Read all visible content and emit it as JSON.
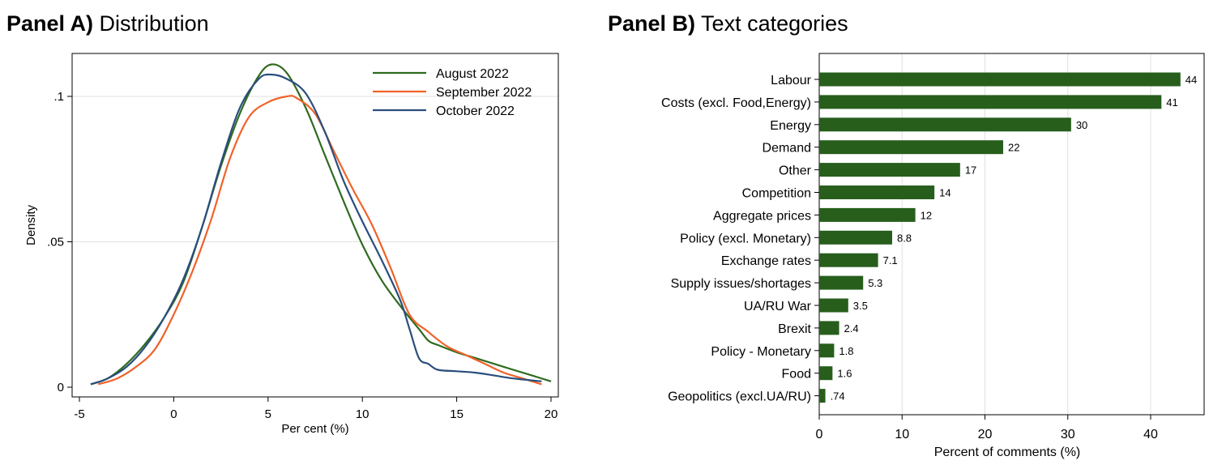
{
  "chart_data": [
    {
      "panel": "A",
      "type": "line",
      "title_prefix": "Panel A)",
      "title": "Distribution",
      "xlabel": "Per cent (%)",
      "ylabel": "Density",
      "xlim": [
        -5,
        20
      ],
      "ylim": [
        0,
        0.113
      ],
      "xticks": [
        -5,
        0,
        5,
        10,
        15,
        20
      ],
      "xtick_labels": [
        "-5",
        "0",
        "5",
        "10",
        "15",
        "20"
      ],
      "yticks": [
        0,
        0.05,
        0.1
      ],
      "ytick_labels": [
        "0",
        ".05",
        ".1"
      ],
      "grid": true,
      "legend_position": "top-right",
      "series": [
        {
          "name": "August 2022",
          "color": "#2e6b1f",
          "x": [
            -4.4,
            -3.5,
            -2.5,
            -1.5,
            -0.5,
            0.5,
            1.5,
            2.5,
            3.5,
            4.5,
            5.2,
            6.0,
            7.0,
            8.0,
            9.0,
            10.0,
            11.0,
            12.0,
            13.0,
            13.5,
            14.0,
            15.0,
            16.0,
            17.0,
            18.0,
            19.0,
            20.0
          ],
          "y": [
            0.001,
            0.003,
            0.008,
            0.015,
            0.024,
            0.036,
            0.055,
            0.076,
            0.094,
            0.107,
            0.111,
            0.108,
            0.096,
            0.08,
            0.064,
            0.049,
            0.037,
            0.028,
            0.02,
            0.016,
            0.0145,
            0.012,
            0.01,
            0.008,
            0.006,
            0.004,
            0.002
          ]
        },
        {
          "name": "September 2022",
          "color": "#f0622a",
          "x": [
            -4.0,
            -3.0,
            -2.0,
            -1.0,
            0.0,
            1.0,
            2.0,
            3.0,
            4.0,
            5.0,
            6.0,
            6.5,
            7.5,
            8.5,
            9.5,
            10.5,
            11.5,
            12.5,
            13.5,
            14.5,
            15.5,
            16.5,
            17.5,
            18.5,
            19.5
          ],
          "y": [
            0.001,
            0.003,
            0.007,
            0.013,
            0.025,
            0.04,
            0.058,
            0.079,
            0.093,
            0.098,
            0.1,
            0.0995,
            0.094,
            0.081,
            0.068,
            0.056,
            0.041,
            0.025,
            0.019,
            0.014,
            0.011,
            0.008,
            0.005,
            0.003,
            0.001
          ]
        },
        {
          "name": "October 2022",
          "color": "#2a4e7c",
          "x": [
            -4.4,
            -3.5,
            -2.5,
            -1.5,
            -0.5,
            0.5,
            1.5,
            2.5,
            3.5,
            4.5,
            5.2,
            6.0,
            7.0,
            8.0,
            9.0,
            10.0,
            11.0,
            12.0,
            12.5,
            13.0,
            13.5,
            14.0,
            15.0,
            16.0,
            17.0,
            18.0,
            19.5
          ],
          "y": [
            0.001,
            0.003,
            0.007,
            0.014,
            0.024,
            0.037,
            0.055,
            0.077,
            0.096,
            0.106,
            0.1075,
            0.106,
            0.101,
            0.088,
            0.071,
            0.057,
            0.044,
            0.03,
            0.02,
            0.01,
            0.008,
            0.006,
            0.0055,
            0.005,
            0.004,
            0.003,
            0.002
          ]
        }
      ]
    },
    {
      "panel": "B",
      "type": "bar",
      "orientation": "horizontal",
      "title_prefix": "Panel B)",
      "title": "Text categories",
      "xlabel": "Percent of comments (%)",
      "ylabel": "",
      "xlim": [
        0,
        45
      ],
      "xticks": [
        0,
        10,
        20,
        30,
        40
      ],
      "xtick_labels": [
        "0",
        "10",
        "20",
        "30",
        "40"
      ],
      "grid": true,
      "bar_color": "#275e1c",
      "categories": [
        "Labour",
        "Costs (excl. Food,Energy)",
        "Energy",
        "Demand",
        "Other",
        "Competition",
        "Aggregate prices",
        "Policy (excl. Monetary)",
        "Exchange rates",
        "Supply issues/shortages",
        "UA/RU War",
        "Brexit",
        "Policy - Monetary",
        "Food",
        "Geopolitics (excl.UA/RU)"
      ],
      "values": [
        43.6,
        41.3,
        30.4,
        22.2,
        17.0,
        13.9,
        11.6,
        8.8,
        7.1,
        5.3,
        3.5,
        2.4,
        1.8,
        1.6,
        0.74
      ],
      "value_labels": [
        "44",
        "41",
        "30",
        "22",
        "17",
        "14",
        "12",
        "8.8",
        "7.1",
        "5.3",
        "3.5",
        "2.4",
        "1.8",
        "1.6",
        ".74"
      ]
    }
  ]
}
